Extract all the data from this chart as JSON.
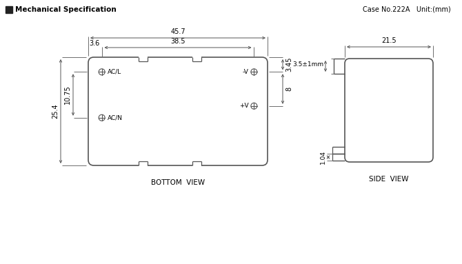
{
  "title": "Mechanical Specification",
  "case_info": "Case No.222A   Unit:(mm)",
  "bottom_view_label": "BOTTOM  VIEW",
  "side_view_label": "SIDE  VIEW",
  "bg_color": "#ffffff",
  "line_color": "#555555",
  "text_color": "#000000",
  "labels": {
    "acl": "AC/L",
    "acn": "AC/N",
    "neg_v": "-V",
    "pos_v": "+V",
    "width_top": "45.7",
    "width_inner": "38.5",
    "left_top": "3.6",
    "right_top_dim": "3.45",
    "right_spacing": "8",
    "left_full": "25.4",
    "left_upper": "10.75",
    "side_width_label": "21.5",
    "tab_label": "3.5±1mm",
    "pin_label": "1.04"
  }
}
